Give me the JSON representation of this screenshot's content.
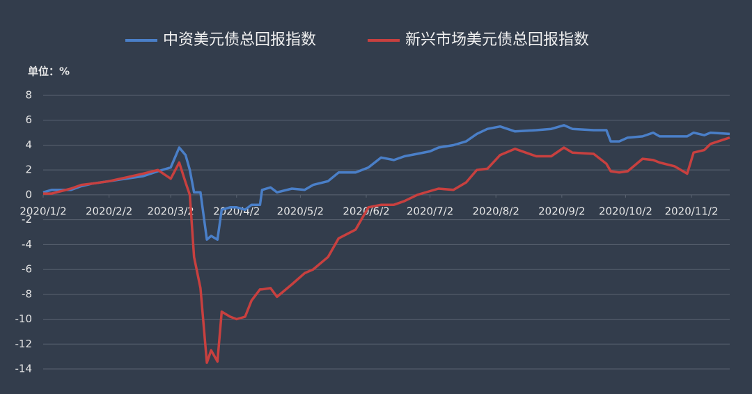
{
  "chart_data": {
    "type": "line",
    "unit_label": "单位：%",
    "x": [
      "2020/1/2",
      "2020/1/6",
      "2020/1/15",
      "2020/1/20",
      "2020/1/25",
      "2020/2/2",
      "2020/2/10",
      "2020/2/18",
      "2020/2/25",
      "2020/3/2",
      "2020/3/6",
      "2020/3/9",
      "2020/3/11",
      "2020/3/13",
      "2020/3/16",
      "2020/3/19",
      "2020/3/21",
      "2020/3/24",
      "2020/3/26",
      "2020/3/30",
      "2020/4/2",
      "2020/4/6",
      "2020/4/9",
      "2020/4/13",
      "2020/4/14",
      "2020/4/18",
      "2020/4/21",
      "2020/4/28",
      "2020/5/4",
      "2020/5/8",
      "2020/5/15",
      "2020/5/20",
      "2020/5/28",
      "2020/6/3",
      "2020/6/9",
      "2020/6/15",
      "2020/6/20",
      "2020/6/26",
      "2020/7/2",
      "2020/7/6",
      "2020/7/13",
      "2020/7/19",
      "2020/7/24",
      "2020/7/29",
      "2020/8/4",
      "2020/8/11",
      "2020/8/21",
      "2020/8/28",
      "2020/9/3",
      "2020/9/7",
      "2020/9/17",
      "2020/9/23",
      "2020/9/25",
      "2020/9/29",
      "2020/10/3",
      "2020/10/10",
      "2020/10/15",
      "2020/10/18",
      "2020/10/25",
      "2020/10/31",
      "2020/11/3",
      "2020/11/8",
      "2020/11/11",
      "2020/11/20"
    ],
    "series": [
      {
        "name": "中资美元债总回报指数",
        "color": "#4a7fc8",
        "values": [
          0.2,
          0.4,
          0.4,
          0.7,
          0.9,
          1.1,
          1.3,
          1.5,
          1.9,
          2.2,
          3.8,
          3.2,
          2.0,
          0.2,
          0.2,
          -3.6,
          -3.3,
          -3.6,
          -1.2,
          -1.0,
          -1.0,
          -1.2,
          -0.8,
          -0.8,
          0.4,
          0.6,
          0.2,
          0.5,
          0.4,
          0.8,
          1.1,
          1.8,
          1.8,
          2.2,
          3.0,
          2.8,
          3.1,
          3.3,
          3.5,
          3.8,
          4.0,
          4.3,
          4.9,
          5.3,
          5.5,
          5.1,
          5.2,
          5.3,
          5.6,
          5.3,
          5.2,
          5.2,
          4.3,
          4.3,
          4.6,
          4.7,
          5.0,
          4.7,
          4.7,
          4.7,
          5.0,
          4.8,
          5.0,
          4.9
        ]
      },
      {
        "name": "新兴市场美元债总回报指数",
        "color": "#c8403f",
        "values": [
          0.1,
          0.1,
          0.5,
          0.8,
          0.9,
          1.1,
          1.4,
          1.7,
          2.0,
          1.3,
          2.6,
          1.0,
          0.0,
          -5.0,
          -7.5,
          -13.5,
          -12.5,
          -13.4,
          -9.4,
          -9.8,
          -10,
          -9.8,
          -8.5,
          -7.6,
          -7.6,
          -7.5,
          -8.2,
          -7.2,
          -6.3,
          -6.0,
          -5.0,
          -3.5,
          -2.8,
          -1.0,
          -0.8,
          -0.8,
          -0.5,
          0.0,
          0.3,
          0.5,
          0.4,
          1.0,
          2.0,
          2.1,
          3.2,
          3.7,
          3.1,
          3.1,
          3.8,
          3.4,
          3.3,
          2.5,
          1.9,
          1.8,
          1.9,
          2.9,
          2.8,
          2.6,
          2.3,
          1.7,
          3.4,
          3.6,
          4.1,
          4.6
        ]
      }
    ],
    "xlim": [
      "2020/1/2",
      "2020/11/20"
    ],
    "xticks": [
      "2020/1/2",
      "2020/2/2",
      "2020/3/2",
      "2020/4/2",
      "2020/5/2",
      "2020/6/2",
      "2020/7/2",
      "2020/8/2",
      "2020/9/2",
      "2020/10/2",
      "2020/11/2"
    ],
    "ylim": [
      -14,
      8
    ],
    "yticks": [
      8,
      6,
      4,
      2,
      0,
      -2,
      -4,
      -6,
      -8,
      -10,
      -12,
      -14
    ],
    "grid": true,
    "legend": "top"
  }
}
